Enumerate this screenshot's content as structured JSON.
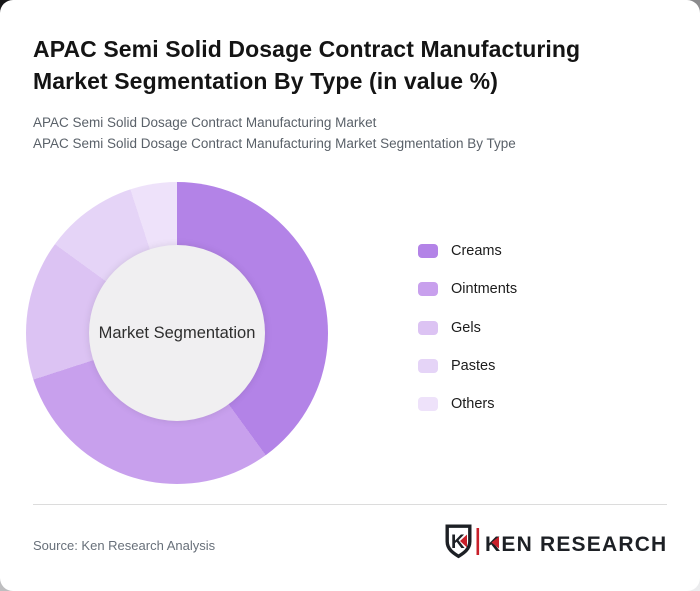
{
  "page": {
    "title": "APAC Semi Solid Dosage Contract Manufacturing Market Segmentation By Type (in value %)",
    "subtitle_line1": "APAC Semi Solid Dosage Contract Manufacturing Market",
    "subtitle_line2": "APAC Semi Solid Dosage Contract Manufacturing Market Segmentation By Type"
  },
  "chart_data": {
    "type": "pie",
    "donut": true,
    "title": "APAC Semi Solid Dosage Contract Manufacturing Market Segmentation By Type (in value %)",
    "center_label": "Market Segmentation",
    "categories": [
      "Creams",
      "Ointments",
      "Gels",
      "Pastes",
      "Others"
    ],
    "values": [
      40,
      30,
      15,
      10,
      5
    ],
    "unit": "value %",
    "colors": [
      "#b383e7",
      "#c8a0ed",
      "#dcc3f3",
      "#e5d4f7",
      "#eee2fa"
    ],
    "center_fill": "#f0eff1",
    "legend_position": "right",
    "start_angle_deg": 0
  },
  "footer": {
    "source": "Source: Ken Research Analysis",
    "logo_shield_letter": "K",
    "logo_text": "KEN RESEARCH",
    "logo_dark_color": "#1d2025",
    "logo_accent_color": "#c8202a"
  }
}
